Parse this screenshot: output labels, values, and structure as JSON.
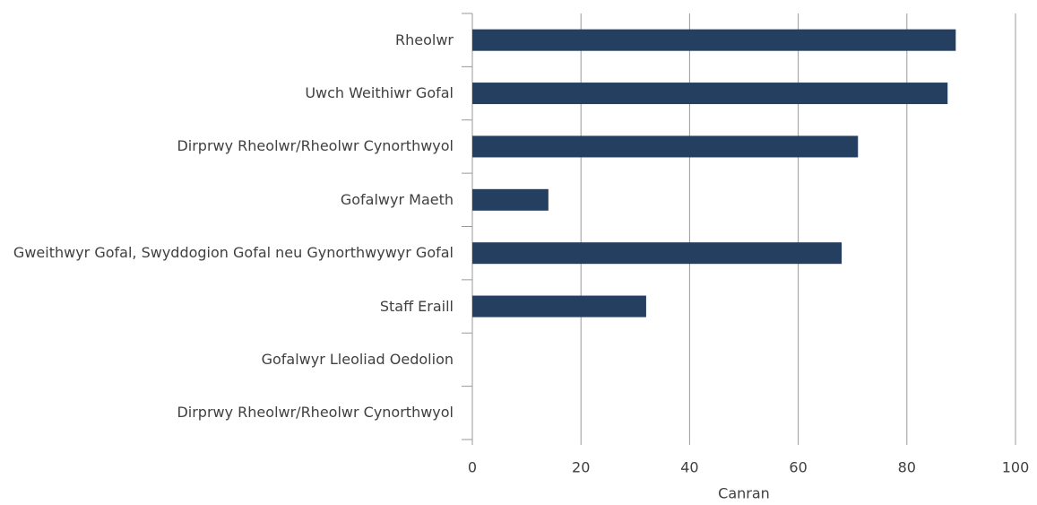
{
  "chart_data": {
    "type": "bar",
    "orientation": "horizontal",
    "categories": [
      "Rheolwr",
      "Uwch Weithiwr Gofal",
      "Dirprwy Rheolwr/Rheolwr Cynorthwyol",
      "Gofalwyr Maeth",
      "Gweithwyr Gofal, Swyddogion Gofal neu Gynorthwywyr Gofal",
      "Staff Eraill",
      "Gofalwyr Lleoliad Oedolion",
      "Dirprwy Rheolwr/Rheolwr Cynorthwyol"
    ],
    "values": [
      89,
      87.5,
      71,
      14,
      68,
      32,
      0,
      0
    ],
    "color": "#243f60",
    "x_label": "Canran",
    "xlim": [
      0,
      100
    ],
    "xticks": [
      0,
      20,
      40,
      60,
      80,
      100
    ],
    "grid": true
  }
}
